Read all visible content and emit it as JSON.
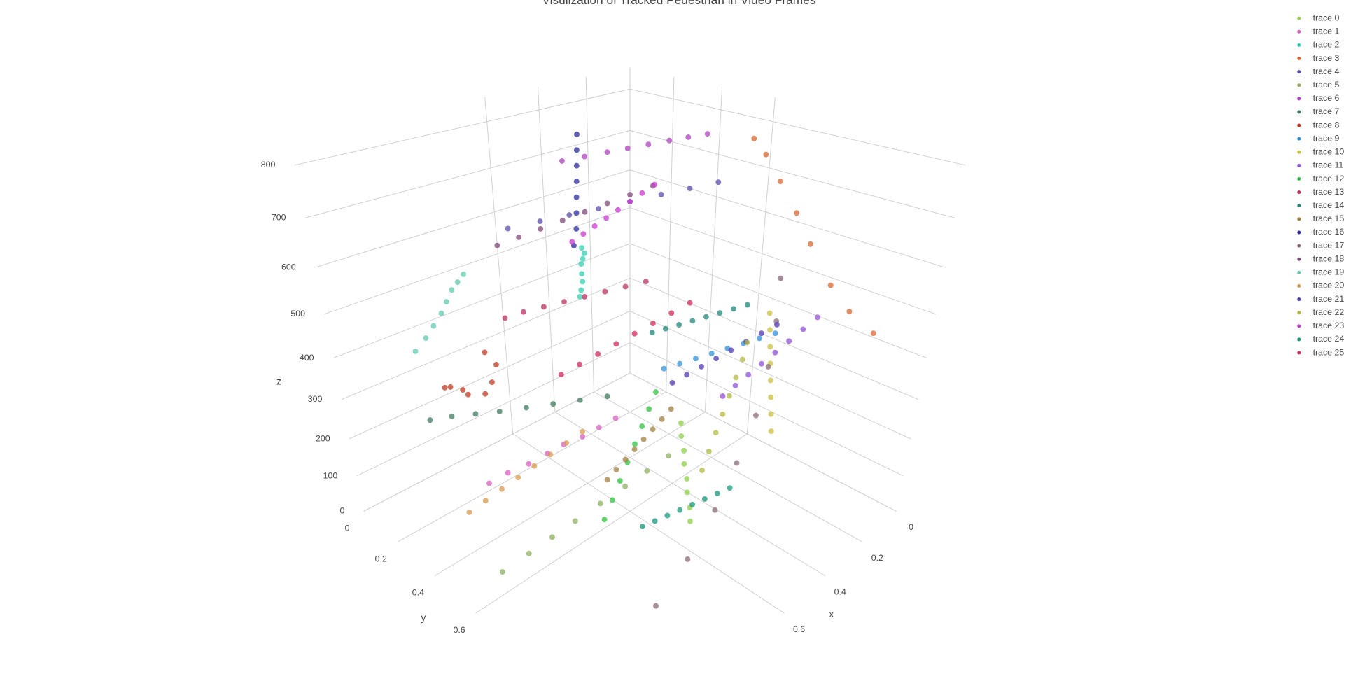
{
  "chart_data": {
    "type": "scatter3d",
    "title": "Visulization of Tracked Pedestrian in Video Frames",
    "xlabel": "x",
    "ylabel": "y",
    "zlabel": "z",
    "xlim": [
      0,
      1.2
    ],
    "ylim": [
      0,
      1.2
    ],
    "zlim": [
      0,
      850
    ],
    "xticks": [
      0,
      0.2,
      0.4,
      0.6
    ],
    "yticks": [
      0,
      0.2,
      0.4,
      0.6
    ],
    "zticks": [
      0,
      100,
      200,
      300,
      400,
      500,
      600,
      700,
      800
    ],
    "grid": true,
    "series": [
      {
        "name": "trace 0",
        "color": "#8fcf4a",
        "x": [
          0.6,
          0.58,
          0.56,
          0.54,
          0.52,
          0.5,
          0.48,
          0.46
        ],
        "y": [
          0.85,
          0.83,
          0.8,
          0.78,
          0.75,
          0.73,
          0.7,
          0.68
        ],
        "z": [
          80,
          100,
          120,
          140,
          160,
          180,
          200,
          220
        ]
      },
      {
        "name": "trace 1",
        "color": "#d860c0",
        "x": [
          0.95,
          0.9,
          0.85,
          0.8,
          0.76,
          0.72,
          0.68,
          0.64
        ],
        "y": [
          0.35,
          0.38,
          0.42,
          0.45,
          0.48,
          0.52,
          0.55,
          0.58
        ],
        "z": [
          120,
          140,
          160,
          180,
          200,
          220,
          240,
          260
        ]
      },
      {
        "name": "trace 2",
        "color": "#30d0b0",
        "x": [
          0.3,
          0.32,
          0.33,
          0.35,
          0.36,
          0.37,
          0.38,
          0.4
        ],
        "y": [
          0.05,
          0.08,
          0.1,
          0.12,
          0.13,
          0.15,
          0.17,
          0.18
        ],
        "z": [
          330,
          360,
          390,
          420,
          450,
          470,
          490,
          510
        ]
      },
      {
        "name": "trace 3",
        "color": "#d8662f",
        "x": [
          0.02,
          0.05,
          0.08,
          0.1,
          0.12,
          0.1,
          0.08,
          0.05
        ],
        "y": [
          0.55,
          0.62,
          0.7,
          0.78,
          0.85,
          0.92,
          0.98,
          1.05
        ],
        "z": [
          760,
          740,
          700,
          650,
          600,
          520,
          470,
          430
        ]
      },
      {
        "name": "trace 4",
        "color": "#5a4aa8",
        "x": [
          0.7,
          0.62,
          0.55,
          0.48,
          0.4,
          0.32,
          0.25,
          0.18
        ],
        "y": [
          0.2,
          0.25,
          0.3,
          0.35,
          0.4,
          0.45,
          0.5,
          0.55
        ],
        "z": [
          620,
          630,
          640,
          650,
          660,
          670,
          680,
          690
        ]
      },
      {
        "name": "trace 5",
        "color": "#8fb060",
        "x": [
          1.1,
          1.02,
          0.95,
          0.88,
          0.8,
          0.72,
          0.65,
          0.58
        ],
        "y": [
          0.6,
          0.62,
          0.64,
          0.66,
          0.68,
          0.7,
          0.72,
          0.74
        ],
        "z": [
          60,
          80,
          100,
          120,
          140,
          160,
          180,
          200
        ]
      },
      {
        "name": "trace 6",
        "color": "#b040c0",
        "x": [
          0.4,
          0.35,
          0.3,
          0.26,
          0.22,
          0.18,
          0.15,
          0.12
        ],
        "y": [
          0.1,
          0.15,
          0.2,
          0.25,
          0.3,
          0.35,
          0.4,
          0.45
        ],
        "z": [
          700,
          710,
          720,
          730,
          740,
          750,
          760,
          770
        ]
      },
      {
        "name": "trace 7",
        "color": "#3e7a5e",
        "x": [
          0.95,
          0.9,
          0.85,
          0.8,
          0.74,
          0.68,
          0.62,
          0.56
        ],
        "y": [
          0.05,
          0.1,
          0.16,
          0.22,
          0.28,
          0.34,
          0.4,
          0.46
        ],
        "z": [
          180,
          190,
          200,
          210,
          220,
          230,
          240,
          250
        ]
      },
      {
        "name": "trace 8",
        "color": "#c03820",
        "x": [
          0.8,
          0.85,
          0.9,
          0.88,
          0.82,
          0.75,
          0.7,
          0.72
        ],
        "y": [
          0.05,
          0.03,
          0.08,
          0.15,
          0.18,
          0.12,
          0.08,
          0.05
        ],
        "z": [
          200,
          230,
          260,
          270,
          250,
          240,
          260,
          290
        ]
      },
      {
        "name": "trace 9",
        "color": "#3090d8",
        "x": [
          0.4,
          0.36,
          0.32,
          0.28,
          0.24,
          0.2,
          0.16,
          0.12
        ],
        "y": [
          0.55,
          0.58,
          0.61,
          0.64,
          0.67,
          0.7,
          0.73,
          0.76
        ],
        "z": [
          300,
          310,
          320,
          330,
          340,
          350,
          360,
          370
        ]
      },
      {
        "name": "trace 10",
        "color": "#c8c040",
        "x": [
          0.3,
          0.28,
          0.26,
          0.24,
          0.22,
          0.2,
          0.18,
          0.16
        ],
        "y": [
          0.9,
          0.88,
          0.86,
          0.84,
          0.82,
          0.8,
          0.78,
          0.76
        ],
        "z": [
          220,
          250,
          280,
          310,
          340,
          370,
          400,
          430
        ]
      },
      {
        "name": "trace 11",
        "color": "#9050d8",
        "x": [
          0.2,
          0.22,
          0.24,
          0.26,
          0.28,
          0.3,
          0.32,
          0.34
        ],
        "y": [
          0.95,
          0.92,
          0.89,
          0.86,
          0.83,
          0.8,
          0.77,
          0.74
        ],
        "z": [
          480,
          450,
          420,
          390,
          360,
          330,
          300,
          270
        ]
      },
      {
        "name": "trace 12",
        "color": "#30c040",
        "x": [
          0.85,
          0.8,
          0.75,
          0.7,
          0.65,
          0.6,
          0.55,
          0.5
        ],
        "y": [
          0.75,
          0.73,
          0.71,
          0.69,
          0.67,
          0.65,
          0.63,
          0.61
        ],
        "z": [
          150,
          170,
          190,
          210,
          230,
          250,
          270,
          290
        ]
      },
      {
        "name": "trace 13",
        "color": "#b83060",
        "x": [
          0.7,
          0.65,
          0.6,
          0.55,
          0.5,
          0.45,
          0.4,
          0.35
        ],
        "y": [
          0.15,
          0.18,
          0.22,
          0.26,
          0.3,
          0.34,
          0.38,
          0.42
        ],
        "z": [
          400,
          410,
          420,
          430,
          440,
          450,
          460,
          470
        ]
      },
      {
        "name": "trace 14",
        "color": "#208878",
        "x": [
          0.35,
          0.32,
          0.29,
          0.26,
          0.23,
          0.2,
          0.17,
          0.14
        ],
        "y": [
          0.45,
          0.48,
          0.51,
          0.54,
          0.57,
          0.6,
          0.63,
          0.66
        ],
        "z": [
          350,
          360,
          370,
          380,
          390,
          400,
          410,
          420
        ]
      },
      {
        "name": "trace 15",
        "color": "#a08040",
        "x": [
          0.65,
          0.62,
          0.59,
          0.56,
          0.53,
          0.5,
          0.47,
          0.44
        ],
        "y": [
          0.55,
          0.56,
          0.57,
          0.58,
          0.59,
          0.6,
          0.61,
          0.62
        ],
        "z": [
          90,
          110,
          130,
          150,
          170,
          190,
          210,
          230
        ]
      },
      {
        "name": "trace 16",
        "color": "#2a2a98",
        "x": [
          0.45,
          0.42,
          0.4,
          0.38,
          0.36,
          0.34,
          0.32,
          0.3
        ],
        "y": [
          0.2,
          0.18,
          0.16,
          0.14,
          0.12,
          0.1,
          0.08,
          0.06
        ],
        "z": [
          530,
          560,
          590,
          620,
          650,
          680,
          710,
          740
        ]
      },
      {
        "name": "trace 17",
        "color": "#8a6a78",
        "x": [
          0.85,
          0.7,
          0.55,
          0.42,
          0.3,
          0.2,
          0.12,
          0.06
        ],
        "y": [
          0.95,
          0.93,
          0.9,
          0.87,
          0.84,
          0.8,
          0.76,
          0.72
        ],
        "z": [
          20,
          60,
          110,
          170,
          240,
          320,
          400,
          480
        ]
      },
      {
        "name": "trace 18",
        "color": "#804878",
        "x": [
          0.6,
          0.55,
          0.5,
          0.45,
          0.4,
          0.35,
          0.3,
          0.25
        ],
        "y": [
          0.0,
          0.05,
          0.1,
          0.15,
          0.2,
          0.25,
          0.3,
          0.35
        ],
        "z": [
          520,
          540,
          560,
          580,
          600,
          620,
          640,
          660
        ]
      },
      {
        "name": "trace 19",
        "color": "#60c8b0",
        "x": [
          0.95,
          0.92,
          0.9,
          0.88,
          0.87,
          0.86,
          0.85,
          0.84
        ],
        "y": [
          0.02,
          0.04,
          0.06,
          0.08,
          0.1,
          0.12,
          0.14,
          0.16
        ],
        "z": [
          350,
          380,
          410,
          440,
          470,
          500,
          520,
          540
        ]
      },
      {
        "name": "trace 20",
        "color": "#d89a50",
        "x": [
          1.0,
          0.95,
          0.9,
          0.85,
          0.8,
          0.75,
          0.7,
          0.65
        ],
        "y": [
          0.3,
          0.32,
          0.34,
          0.36,
          0.38,
          0.4,
          0.42,
          0.44
        ],
        "z": [
          40,
          60,
          80,
          100,
          120,
          140,
          160,
          180
        ]
      },
      {
        "name": "trace 21",
        "color": "#5038b0",
        "x": [
          0.25,
          0.28,
          0.31,
          0.34,
          0.37,
          0.4,
          0.43,
          0.46
        ],
        "y": [
          0.85,
          0.82,
          0.79,
          0.76,
          0.73,
          0.7,
          0.67,
          0.64
        ],
        "z": [
          450,
          430,
          410,
          390,
          370,
          350,
          330,
          310
        ]
      },
      {
        "name": "trace 22",
        "color": "#b0b840",
        "x": [
          0.25,
          0.28,
          0.32,
          0.36,
          0.4,
          0.44,
          0.48,
          0.52
        ],
        "y": [
          0.75,
          0.76,
          0.77,
          0.78,
          0.79,
          0.8,
          0.81,
          0.82
        ],
        "z": [
          380,
          350,
          320,
          290,
          260,
          230,
          200,
          170
        ]
      },
      {
        "name": "trace 23",
        "color": "#c838d0",
        "x": [
          0.5,
          0.48,
          0.46,
          0.44,
          0.42,
          0.4,
          0.38,
          0.36
        ],
        "y": [
          0.25,
          0.28,
          0.31,
          0.34,
          0.37,
          0.4,
          0.43,
          0.46
        ],
        "z": [
          560,
          580,
          600,
          620,
          640,
          660,
          680,
          700
        ]
      },
      {
        "name": "trace 24",
        "color": "#18987a",
        "x": [
          0.75,
          0.72,
          0.69,
          0.66,
          0.63,
          0.6,
          0.57,
          0.54
        ],
        "y": [
          0.8,
          0.82,
          0.84,
          0.86,
          0.88,
          0.9,
          0.92,
          0.94
        ],
        "z": [
          110,
          120,
          130,
          140,
          150,
          160,
          170,
          180
        ]
      },
      {
        "name": "trace 25",
        "color": "#d02858",
        "x": [
          0.65,
          0.6,
          0.55,
          0.5,
          0.45,
          0.4,
          0.35,
          0.3
        ],
        "y": [
          0.35,
          0.38,
          0.41,
          0.44,
          0.47,
          0.5,
          0.53,
          0.56
        ],
        "z": [
          300,
          320,
          340,
          360,
          380,
          400,
          420,
          440
        ]
      }
    ]
  }
}
